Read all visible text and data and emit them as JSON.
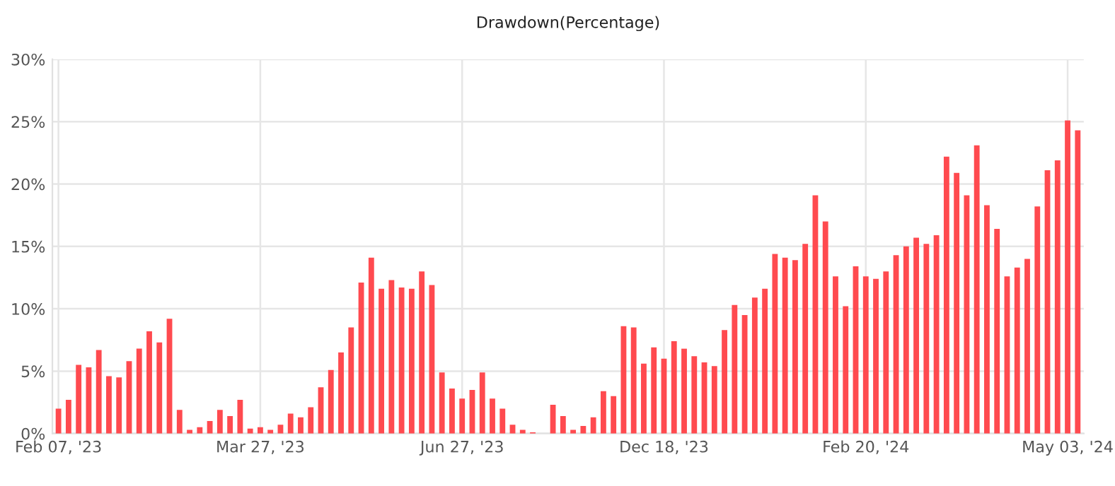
{
  "chart_data": {
    "type": "bar",
    "title": "Drawdown(Percentage)",
    "categories": [
      "Feb 07, '23",
      null,
      null,
      null,
      null,
      null,
      null,
      null,
      null,
      null,
      null,
      null,
      null,
      null,
      null,
      null,
      null,
      null,
      null,
      null,
      "Mar 27, '23",
      null,
      null,
      null,
      null,
      null,
      null,
      null,
      null,
      null,
      null,
      null,
      null,
      null,
      null,
      null,
      null,
      null,
      null,
      null,
      "Jun 27, '23",
      null,
      null,
      null,
      null,
      null,
      null,
      null,
      null,
      null,
      null,
      null,
      null,
      null,
      null,
      null,
      null,
      null,
      null,
      null,
      "Dec 18, '23",
      null,
      null,
      null,
      null,
      null,
      null,
      null,
      null,
      null,
      null,
      null,
      null,
      null,
      null,
      null,
      null,
      null,
      null,
      null,
      "Feb 20, '24",
      null,
      null,
      null,
      null,
      null,
      null,
      null,
      null,
      null,
      null,
      null,
      null,
      null,
      null,
      null,
      null,
      null,
      null,
      null,
      "May 03, '24",
      null
    ],
    "values": [
      2.0,
      2.7,
      5.5,
      5.3,
      6.7,
      4.6,
      4.5,
      5.8,
      6.8,
      8.2,
      7.3,
      9.2,
      1.9,
      0.3,
      0.5,
      1.0,
      1.9,
      1.4,
      2.7,
      0.4,
      0.5,
      0.3,
      0.7,
      1.6,
      1.3,
      2.1,
      3.7,
      5.1,
      6.5,
      8.5,
      12.1,
      14.1,
      11.6,
      12.3,
      11.7,
      11.6,
      13.0,
      11.9,
      4.9,
      3.6,
      2.8,
      3.5,
      4.9,
      2.8,
      2.0,
      0.7,
      0.3,
      0.1,
      0,
      2.3,
      1.4,
      0.3,
      0.6,
      1.3,
      3.4,
      3.0,
      8.6,
      8.5,
      5.6,
      6.9,
      6.0,
      7.4,
      6.8,
      6.2,
      5.7,
      5.4,
      8.3,
      10.3,
      9.5,
      10.9,
      11.6,
      14.4,
      14.1,
      13.9,
      15.2,
      19.1,
      17.0,
      12.6,
      10.2,
      13.4,
      12.6,
      12.4,
      13.0,
      14.3,
      15.0,
      15.7,
      15.2,
      15.9,
      22.2,
      20.9,
      19.1,
      23.1,
      18.3,
      16.4,
      12.6,
      13.3,
      14.0,
      18.2,
      21.1,
      21.9,
      25.1,
      24.3
    ],
    "color": "#ff4a4f",
    "ylim": [
      0,
      30
    ],
    "yticks": [
      {
        "value": 0,
        "label": "0%"
      },
      {
        "value": 5,
        "label": "5%"
      },
      {
        "value": 10,
        "label": "10%"
      },
      {
        "value": 15,
        "label": "15%"
      },
      {
        "value": 20,
        "label": "20%"
      },
      {
        "value": 25,
        "label": "25%"
      },
      {
        "value": 30,
        "label": "30%"
      }
    ],
    "grid": true
  }
}
